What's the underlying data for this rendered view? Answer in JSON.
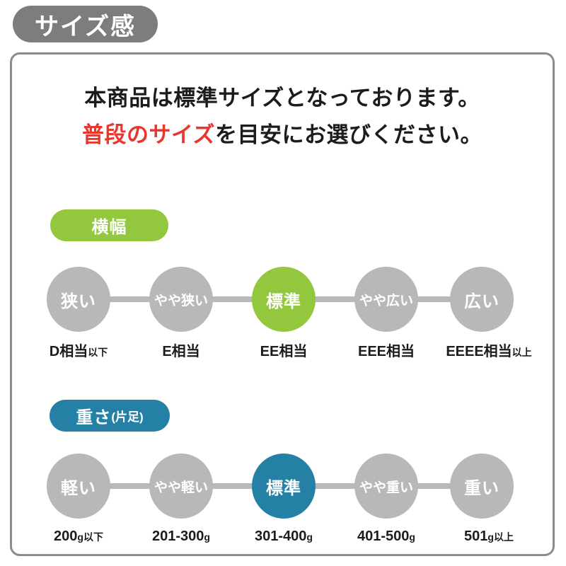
{
  "badge": {
    "label": "サイズ感"
  },
  "heading": {
    "line1": "本商品は標準サイズとなっております。",
    "line2_emphasis": "普段のサイズ",
    "line2_rest": "を目安にお選びください。"
  },
  "colors": {
    "badge-gray": "#7d7d7d",
    "panel-border": "#8c8c8c",
    "circle-gray": "#b8b8b8",
    "accent-green": "#93c73d",
    "accent-blue": "#2580a5",
    "em-red": "#e8382e",
    "text-black": "#1c1c1c"
  },
  "sections": [
    {
      "id": "width",
      "pill_main": "横幅",
      "pill_sub": "",
      "items": [
        {
          "circle": "狭い",
          "selected": false,
          "label_main": "D相当",
          "label_small": "以下"
        },
        {
          "circle": "やや狭い",
          "selected": false,
          "label_main": "E相当",
          "label_small": ""
        },
        {
          "circle": "標準",
          "selected": true,
          "label_main": "EE相当",
          "label_small": ""
        },
        {
          "circle": "やや広い",
          "selected": false,
          "label_main": "EEE相当",
          "label_small": ""
        },
        {
          "circle": "広い",
          "selected": false,
          "label_main": "EEEE相当",
          "label_small": "以上"
        }
      ]
    },
    {
      "id": "weight",
      "pill_main": "重さ",
      "pill_sub": "(片足)",
      "items": [
        {
          "circle": "軽い",
          "selected": false,
          "label_main": "200",
          "label_small": "g以下"
        },
        {
          "circle": "やや軽い",
          "selected": false,
          "label_main": "201-300",
          "label_small": "g"
        },
        {
          "circle": "標準",
          "selected": true,
          "label_main": "301-400",
          "label_small": "g"
        },
        {
          "circle": "やや重い",
          "selected": false,
          "label_main": "401-500",
          "label_small": "g"
        },
        {
          "circle": "重い",
          "selected": false,
          "label_main": "501",
          "label_small": "g以上"
        }
      ]
    }
  ]
}
